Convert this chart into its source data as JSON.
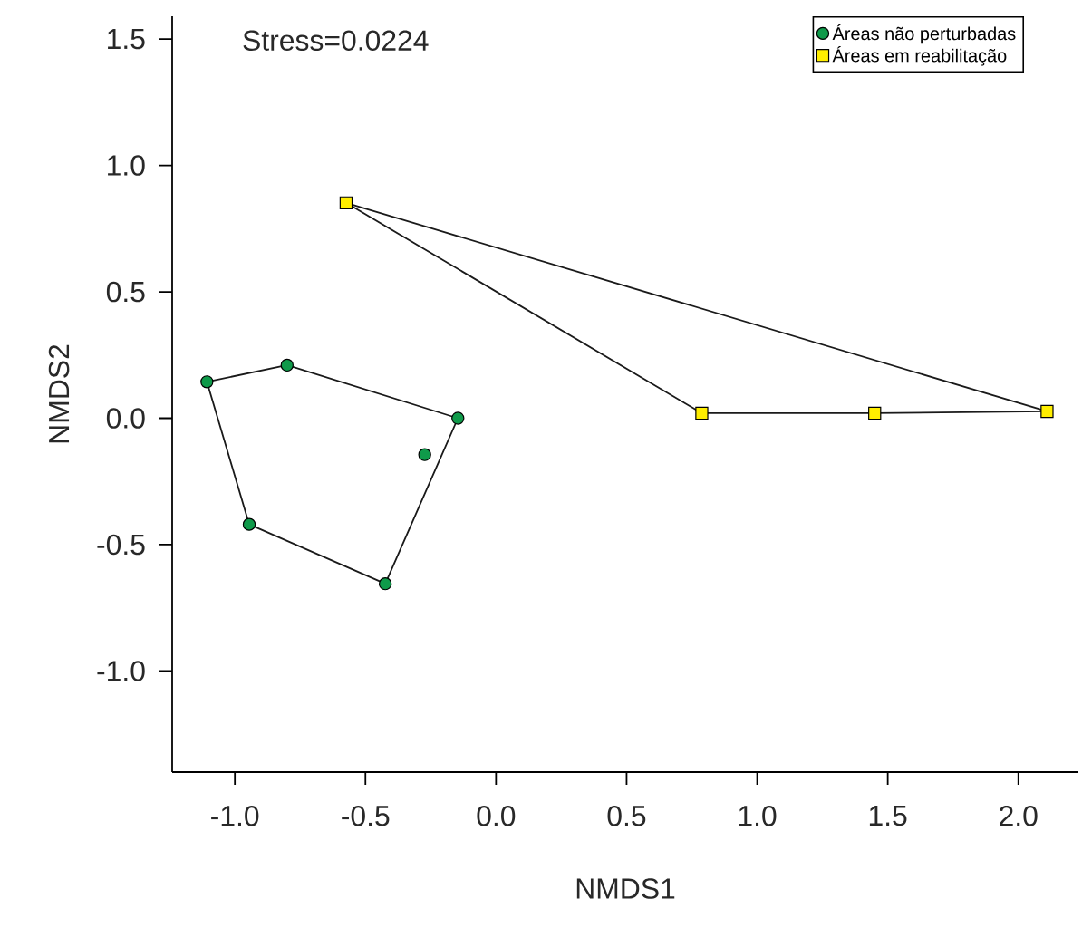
{
  "chart_data": {
    "type": "scatter",
    "xlabel": "NMDS1",
    "ylabel": "NMDS2",
    "annotations": [
      "Stress=0.0224"
    ],
    "xlim": [
      -1.24,
      2.23
    ],
    "ylim": [
      -1.4,
      1.59
    ],
    "xticks": [
      {
        "value": -1,
        "label": "-1.0"
      },
      {
        "value": -0.5,
        "label": "-0.5"
      },
      {
        "value": 0,
        "label": "0.0"
      },
      {
        "value": 0.5,
        "label": "0.5"
      },
      {
        "value": 1,
        "label": "1.0"
      },
      {
        "value": 1.5,
        "label": "1.5"
      },
      {
        "value": 2,
        "label": "2.0"
      }
    ],
    "yticks": [
      {
        "value": -1,
        "label": "-1.0"
      },
      {
        "value": -0.5,
        "label": "-0.5"
      },
      {
        "value": 0,
        "label": "0.0"
      },
      {
        "value": 0.5,
        "label": "0.5"
      },
      {
        "value": 1,
        "label": "1.0"
      },
      {
        "value": 1.5,
        "label": "1.5"
      }
    ],
    "grid": false,
    "legend": "top right",
    "series": [
      {
        "name": "Áreas não perturbadas",
        "color": "#0f9a4a",
        "marker": "circle",
        "x": [
          -1.107,
          -0.8,
          -0.146,
          -0.273,
          -0.424,
          -0.945
        ],
        "values": [
          0.144,
          0.21,
          0.0,
          -0.144,
          -0.655,
          -0.42
        ]
      },
      {
        "name": "Áreas em reabilitação",
        "color": "#ffee00",
        "marker": "square",
        "x": [
          -0.574,
          0.788,
          1.45,
          2.11
        ],
        "values": [
          0.852,
          0.02,
          0.02,
          0.027
        ]
      },
      {
        "type": "line",
        "color": "#1a1a1a",
        "marker": "none",
        "x": [
          -1.107,
          -0.8,
          -0.146
        ],
        "values": [
          0.144,
          0.21,
          0.0
        ]
      },
      {
        "type": "line",
        "color": "#1a1a1a",
        "marker": "none",
        "x": [
          -1.107,
          -0.945,
          -0.424,
          -0.146
        ],
        "values": [
          0.144,
          -0.42,
          -0.655,
          0.0
        ]
      },
      {
        "type": "line",
        "color": "#1a1a1a",
        "marker": "none",
        "x": [
          -0.574,
          2.11
        ],
        "values": [
          0.852,
          0.027
        ]
      },
      {
        "type": "line",
        "color": "#1a1a1a",
        "marker": "none",
        "x": [
          -0.574,
          0.788,
          1.45,
          2.11
        ],
        "values": [
          0.852,
          0.02,
          0.02,
          0.027
        ]
      }
    ]
  }
}
